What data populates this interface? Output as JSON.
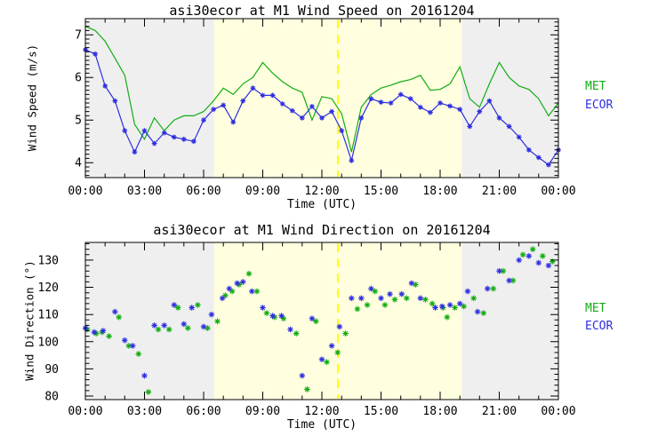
{
  "page": {
    "background": "#ffffff"
  },
  "colors": {
    "met_green": "#12AD12",
    "ecor_blue": "#2E2EE0",
    "night_gray": "#EFEFEF",
    "day_yellow": "#FFFFE0",
    "divider_yellow": "#FFFF00",
    "axis_black": "#000000"
  },
  "legend": {
    "met": "MET",
    "ecor": "ECOR"
  },
  "chart_data": [
    {
      "type": "line",
      "title": "asi30ecor at M1 Wind Speed on 20161204",
      "xlabel": "Time (UTC)",
      "ylabel": "Wind Speed (m/s)",
      "xlim": [
        0,
        24
      ],
      "ylim": [
        3.65,
        7.38
      ],
      "x_tick_hours": [
        0,
        3,
        6,
        9,
        12,
        15,
        18,
        21,
        24
      ],
      "x_tick_labels": [
        "00:00",
        "03:00",
        "06:00",
        "09:00",
        "12:00",
        "15:00",
        "18:00",
        "21:00",
        "00:00"
      ],
      "x_minor_step_hours": 1,
      "y_ticks": [
        4,
        5,
        6,
        7
      ],
      "y_tick_labels": [
        "4",
        "5",
        "6",
        "7"
      ],
      "y_minor_step": 0.1,
      "grid": false,
      "legend_entries": [
        "MET",
        "ECOR"
      ],
      "day_band": {
        "start_hour": 6.53,
        "end_hour": 19.09
      },
      "vline_hour": 12.81,
      "x_start": 0,
      "x_step": 0.5,
      "series": [
        {
          "name": "MET",
          "color_key": "met_green",
          "style": "line",
          "values": [
            7.2,
            7.1,
            6.85,
            6.45,
            6.05,
            4.9,
            4.55,
            5.05,
            4.75,
            5.0,
            5.1,
            5.1,
            5.2,
            5.45,
            5.75,
            5.6,
            5.85,
            6.0,
            6.35,
            6.1,
            5.9,
            5.75,
            5.65,
            5.0,
            5.55,
            5.5,
            5.15,
            4.25,
            5.3,
            5.6,
            5.75,
            5.82,
            5.9,
            5.95,
            6.05,
            5.7,
            5.72,
            5.85,
            6.25,
            5.5,
            5.3,
            5.85,
            6.35,
            6.0,
            5.8,
            5.72,
            5.5,
            5.1,
            5.4
          ]
        },
        {
          "name": "ECOR",
          "color_key": "ecor_blue",
          "style": "line+marker",
          "values": [
            6.65,
            6.55,
            5.8,
            5.45,
            4.75,
            4.25,
            4.75,
            4.45,
            4.7,
            4.6,
            4.55,
            4.5,
            5.0,
            5.25,
            5.35,
            4.95,
            5.45,
            5.75,
            5.58,
            5.58,
            5.38,
            5.22,
            5.05,
            5.32,
            5.05,
            5.2,
            4.75,
            4.05,
            5.05,
            5.5,
            5.42,
            5.4,
            5.6,
            5.5,
            5.3,
            5.18,
            5.4,
            5.33,
            5.25,
            4.85,
            5.2,
            5.45,
            5.05,
            4.85,
            4.6,
            4.3,
            4.12,
            3.95,
            4.3
          ]
        }
      ]
    },
    {
      "type": "scatter",
      "title": "asi30ecor at M1 Wind Direction on 20161204",
      "xlabel": "Time (UTC)",
      "ylabel": "Wind Direction (°)",
      "xlim": [
        0,
        24
      ],
      "ylim": [
        78.7,
        136.5
      ],
      "x_tick_hours": [
        0,
        3,
        6,
        9,
        12,
        15,
        18,
        21,
        24
      ],
      "x_tick_labels": [
        "00:00",
        "03:00",
        "06:00",
        "09:00",
        "12:00",
        "15:00",
        "18:00",
        "21:00",
        "00:00"
      ],
      "x_minor_step_hours": 1,
      "y_ticks": [
        80,
        90,
        100,
        110,
        120,
        130
      ],
      "y_tick_labels": [
        "80",
        "90",
        "100",
        "110",
        "120",
        "130"
      ],
      "y_minor_step": 2,
      "grid": false,
      "legend_entries": [
        "MET",
        "ECOR"
      ],
      "day_band": {
        "start_hour": 6.53,
        "end_hour": 19.09
      },
      "vline_hour": 12.81,
      "series": [
        {
          "name": "MET",
          "color_key": "met_green",
          "style": "marker",
          "points": [
            [
              0.1,
              104.5
            ],
            [
              0.55,
              103
            ],
            [
              0.85,
              103.5
            ],
            [
              1.2,
              102
            ],
            [
              1.7,
              109
            ],
            [
              2.2,
              98.5
            ],
            [
              2.7,
              95.5
            ],
            [
              3.2,
              81.5
            ],
            [
              3.7,
              104.5
            ],
            [
              4.25,
              104.5
            ],
            [
              4.7,
              112.5
            ],
            [
              5.2,
              105
            ],
            [
              5.7,
              113.5
            ],
            [
              6.2,
              105
            ],
            [
              6.7,
              107.5
            ],
            [
              7.1,
              117
            ],
            [
              7.45,
              118.5
            ],
            [
              7.8,
              121
            ],
            [
              8.3,
              125
            ],
            [
              8.7,
              118.5
            ],
            [
              9.2,
              110.5
            ],
            [
              9.6,
              109
            ],
            [
              10.05,
              108.5
            ],
            [
              10.7,
              103
            ],
            [
              11.25,
              82.5
            ],
            [
              11.7,
              107.5
            ],
            [
              12.25,
              92.5
            ],
            [
              12.8,
              96
            ],
            [
              13.2,
              103
            ],
            [
              13.8,
              112
            ],
            [
              14.3,
              113.5
            ],
            [
              14.7,
              118.5
            ],
            [
              15.2,
              113.5
            ],
            [
              15.7,
              115.5
            ],
            [
              16.3,
              116
            ],
            [
              16.75,
              121
            ],
            [
              17.25,
              115.5
            ],
            [
              17.6,
              114
            ],
            [
              18.15,
              112.5
            ],
            [
              18.35,
              109
            ],
            [
              18.75,
              112.5
            ],
            [
              19.2,
              113
            ],
            [
              19.7,
              116
            ],
            [
              20.2,
              110.5
            ],
            [
              20.7,
              119.5
            ],
            [
              21.2,
              126
            ],
            [
              21.7,
              122.5
            ],
            [
              22.2,
              132
            ],
            [
              22.7,
              134
            ],
            [
              23.2,
              131.5
            ],
            [
              23.7,
              129.5
            ]
          ]
        },
        {
          "name": "ECOR",
          "color_key": "ecor_blue",
          "style": "marker",
          "points": [
            [
              0.0,
              105
            ],
            [
              0.45,
              103.5
            ],
            [
              0.9,
              104
            ],
            [
              1.5,
              111
            ],
            [
              2.0,
              100.5
            ],
            [
              2.4,
              98.5
            ],
            [
              3.0,
              87.5
            ],
            [
              3.5,
              106
            ],
            [
              4.0,
              106
            ],
            [
              4.5,
              113.5
            ],
            [
              5.0,
              106.5
            ],
            [
              5.4,
              112.5
            ],
            [
              6.0,
              105.5
            ],
            [
              6.4,
              110
            ],
            [
              6.95,
              116
            ],
            [
              7.3,
              119.5
            ],
            [
              7.7,
              121.5
            ],
            [
              8.0,
              122
            ],
            [
              8.45,
              118.5
            ],
            [
              9.0,
              112.5
            ],
            [
              9.5,
              109.5
            ],
            [
              9.95,
              109.5
            ],
            [
              10.4,
              104.5
            ],
            [
              11.0,
              87.5
            ],
            [
              11.5,
              108.5
            ],
            [
              12.0,
              93.5
            ],
            [
              12.5,
              98.5
            ],
            [
              12.9,
              105.5
            ],
            [
              13.5,
              116
            ],
            [
              14.0,
              116
            ],
            [
              14.5,
              119.5
            ],
            [
              15.0,
              116
            ],
            [
              15.45,
              117.5
            ],
            [
              16.05,
              117.5
            ],
            [
              16.55,
              121.5
            ],
            [
              17.0,
              116
            ],
            [
              17.75,
              112.5
            ],
            [
              18.1,
              113
            ],
            [
              18.5,
              113.5
            ],
            [
              19.0,
              114
            ],
            [
              19.4,
              118.5
            ],
            [
              19.9,
              111
            ],
            [
              20.4,
              119.5
            ],
            [
              21.0,
              126
            ],
            [
              21.5,
              122.5
            ],
            [
              22.0,
              130
            ],
            [
              22.5,
              131.5
            ],
            [
              23.0,
              129
            ],
            [
              23.5,
              128
            ]
          ]
        }
      ]
    }
  ]
}
